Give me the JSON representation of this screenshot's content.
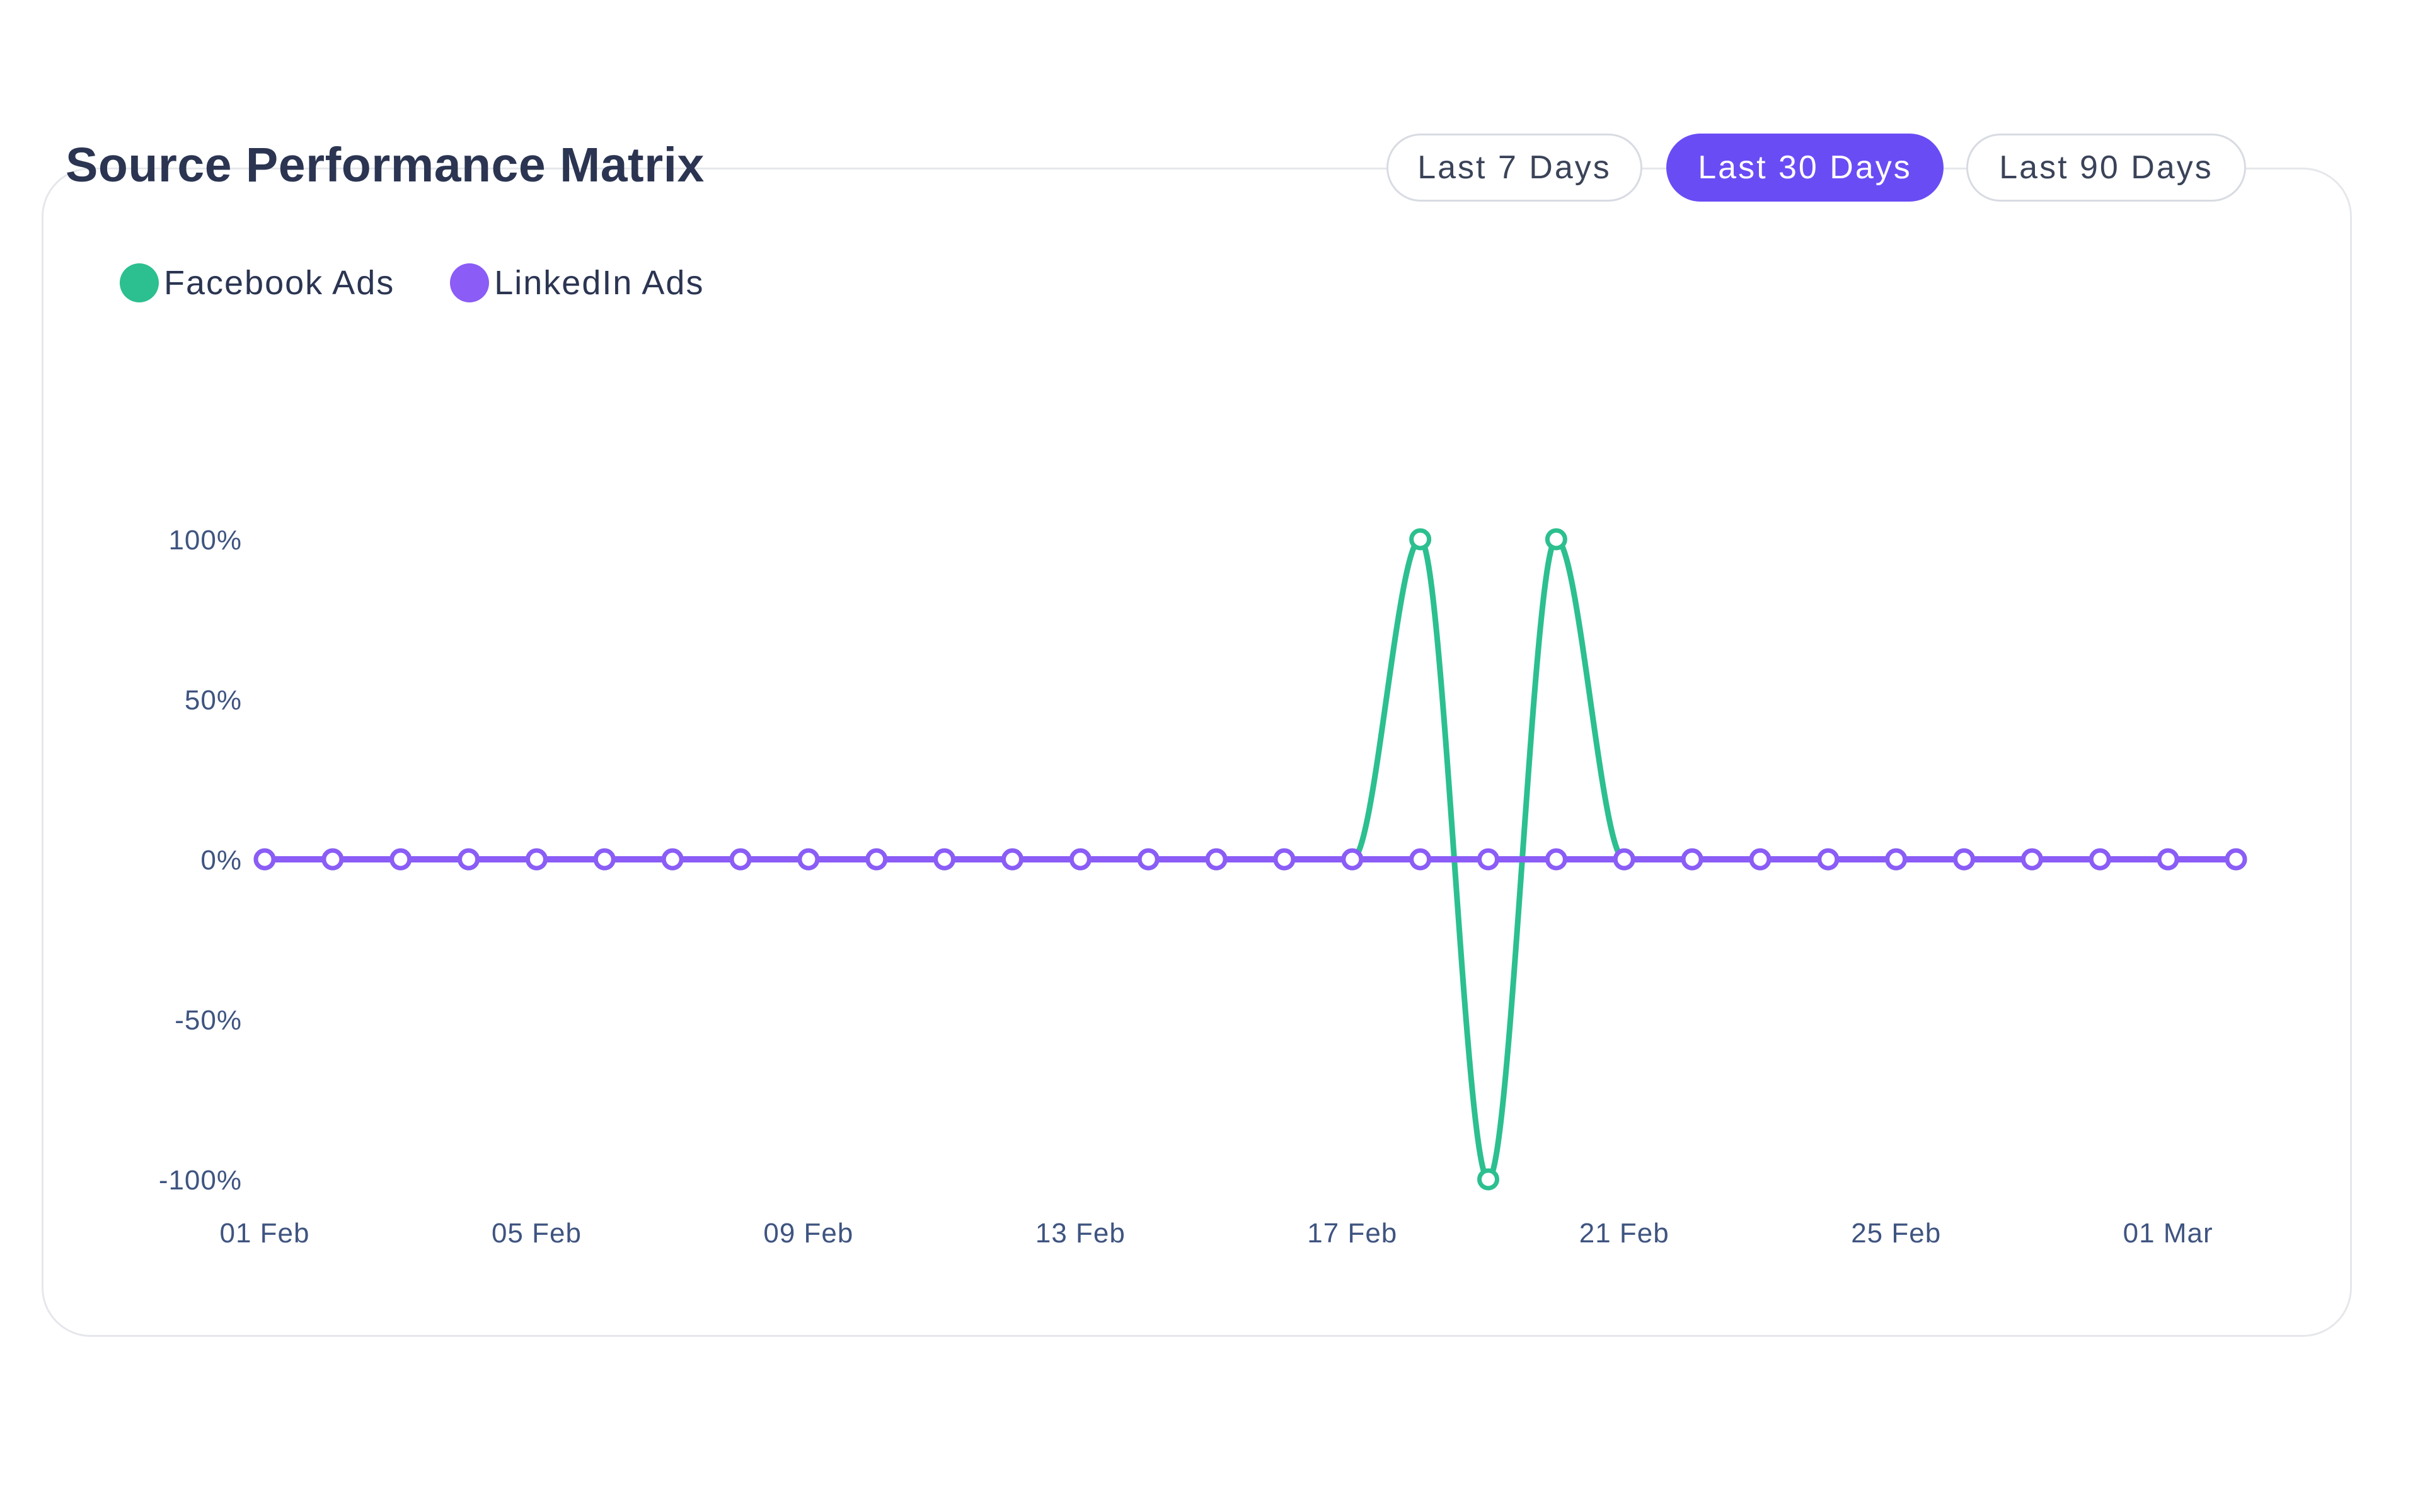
{
  "header": {
    "title": "Source Performance Matrix"
  },
  "range_buttons": [
    {
      "label": "Last 7 Days",
      "active": false
    },
    {
      "label": "Last 30 Days",
      "active": true
    },
    {
      "label": "Last 90 Days",
      "active": false
    }
  ],
  "colors": {
    "facebook": "#2cbf8f",
    "linkedin": "#8b5cf6",
    "accent": "#6a4cf5"
  },
  "chart_data": {
    "type": "line",
    "title": "Source Performance Matrix",
    "xlabel": "",
    "ylabel": "",
    "ylim": [
      -100,
      100
    ],
    "y_ticks": [
      "100%",
      "50%",
      "0%",
      "-50%",
      "-100%"
    ],
    "y_tick_values": [
      100,
      50,
      0,
      -50,
      -100
    ],
    "x_tick_labels": [
      "01 Feb",
      "05 Feb",
      "09 Feb",
      "13 Feb",
      "17 Feb",
      "21 Feb",
      "25 Feb",
      "01 Mar"
    ],
    "x_tick_dates": [
      "2025-02-01",
      "2025-02-05",
      "2025-02-09",
      "2025-02-13",
      "2025-02-17",
      "2025-02-21",
      "2025-02-25",
      "2025-03-01"
    ],
    "x": [
      "2025-02-01",
      "2025-02-02",
      "2025-02-03",
      "2025-02-04",
      "2025-02-05",
      "2025-02-06",
      "2025-02-07",
      "2025-02-08",
      "2025-02-09",
      "2025-02-10",
      "2025-02-11",
      "2025-02-12",
      "2025-02-13",
      "2025-02-14",
      "2025-02-15",
      "2025-02-16",
      "2025-02-17",
      "2025-02-18",
      "2025-02-19",
      "2025-02-20",
      "2025-02-21",
      "2025-02-22",
      "2025-02-23",
      "2025-02-24",
      "2025-02-25",
      "2025-02-26",
      "2025-02-27",
      "2025-02-28",
      "2025-03-01",
      "2025-03-02"
    ],
    "series": [
      {
        "name": "Facebook Ads",
        "color": "#2cbf8f",
        "values": [
          0,
          0,
          0,
          0,
          0,
          0,
          0,
          0,
          0,
          0,
          0,
          0,
          0,
          0,
          0,
          0,
          0,
          100,
          -100,
          100,
          0,
          0,
          0,
          0,
          0,
          0,
          0,
          0,
          0,
          0
        ]
      },
      {
        "name": "LinkedIn Ads",
        "color": "#8b5cf6",
        "values": [
          0,
          0,
          0,
          0,
          0,
          0,
          0,
          0,
          0,
          0,
          0,
          0,
          0,
          0,
          0,
          0,
          0,
          0,
          0,
          0,
          0,
          0,
          0,
          0,
          0,
          0,
          0,
          0,
          0,
          0
        ]
      }
    ],
    "legend": "top-left",
    "grid": false
  }
}
